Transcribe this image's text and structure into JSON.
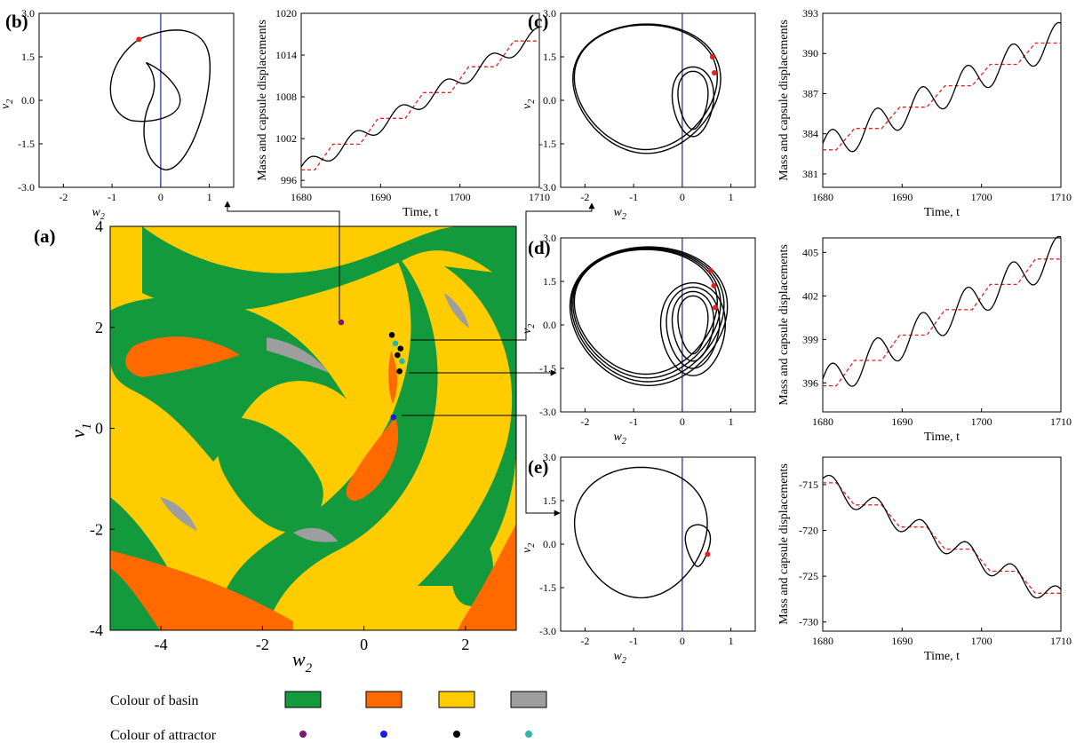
{
  "colors": {
    "green": "#129a3c",
    "orange": "#ff6a00",
    "yellow": "#ffcc00",
    "gray": "#9e9e9e",
    "purple": "#7a1a6e",
    "blue": "#1a1ae6",
    "black": "#000000",
    "teal": "#2cb7a8",
    "red": "#e61e1e",
    "vline": "#2222bb"
  },
  "legend": {
    "basin_label": "Colour of basin",
    "attractor_label": "Colour of attractor",
    "basin_colors": [
      "green",
      "orange",
      "yellow",
      "gray"
    ],
    "attractor_colors": [
      "purple",
      "blue",
      "black",
      "teal"
    ]
  },
  "chart_data": [
    {
      "id": "a",
      "letter": "(a)",
      "type": "heatmap",
      "xlabel": "w",
      "xlabel_sub": "2",
      "ylabel": "v",
      "ylabel_sub": "1",
      "xlim": [
        -5,
        3
      ],
      "ylim": [
        -4,
        4
      ],
      "xticks": [
        -4,
        -2,
        0,
        2
      ],
      "yticks": [
        -4,
        -2,
        0,
        2,
        4
      ],
      "attractor_points": [
        {
          "x": -0.45,
          "y": 2.1,
          "color": "purple"
        },
        {
          "x": 0.55,
          "y": 1.85,
          "color": "black"
        },
        {
          "x": 0.62,
          "y": 1.68,
          "color": "teal"
        },
        {
          "x": 0.72,
          "y": 1.58,
          "color": "black"
        },
        {
          "x": 0.66,
          "y": 1.45,
          "color": "black"
        },
        {
          "x": 0.75,
          "y": 1.33,
          "color": "teal"
        },
        {
          "x": 0.7,
          "y": 1.13,
          "color": "black"
        },
        {
          "x": 0.58,
          "y": 0.22,
          "color": "blue"
        }
      ]
    },
    {
      "id": "b_phase",
      "letter": "(b)",
      "type": "line",
      "xlabel": "w",
      "xlabel_sub": "2",
      "ylabel": "v",
      "ylabel_sub": "2",
      "xlim": [
        -2.5,
        1.5
      ],
      "ylim": [
        -3.0,
        3.0
      ],
      "xticks": [
        "-2",
        "-1",
        "0",
        "1"
      ],
      "yticks": [
        "-3.0",
        "-1.5",
        "0.0",
        "1.5",
        "3.0"
      ],
      "loops": 1,
      "markers": [
        {
          "x": -0.45,
          "y": 2.1
        }
      ]
    },
    {
      "id": "b_time",
      "type": "line",
      "xlabel": "Time, t",
      "ylabel": "Mass and capsule displacements",
      "xlim": [
        1680,
        1710
      ],
      "ylim": [
        995,
        1020
      ],
      "xticks": [
        "1680",
        "1690",
        "1700",
        "1710"
      ],
      "yticks": [
        "996",
        "1002",
        "1008",
        "1014",
        "1020"
      ],
      "trend_start": 997.5,
      "trend_end": 1017,
      "period": 5.7,
      "amp": 1.1
    },
    {
      "id": "c_phase",
      "letter": "(c)",
      "type": "line",
      "xlabel": "w",
      "xlabel_sub": "2",
      "ylabel": "v",
      "ylabel_sub": "2",
      "xlim": [
        -2.5,
        1.5
      ],
      "ylim": [
        -3.0,
        3.0
      ],
      "xticks": [
        "-2",
        "-1",
        "0",
        "1"
      ],
      "yticks": [
        "-3.0",
        "-1.5",
        "0.0",
        "1.5",
        "3.0"
      ],
      "loops": 2,
      "markers": [
        {
          "x": 0.62,
          "y": 1.5
        },
        {
          "x": 0.66,
          "y": 0.95
        }
      ]
    },
    {
      "id": "c_time",
      "type": "line",
      "xlabel": "Time, t",
      "ylabel": "Mass and capsule displacements",
      "xlim": [
        1680,
        1710
      ],
      "ylim": [
        380,
        393
      ],
      "xticks": [
        "1680",
        "1690",
        "1700",
        "1710"
      ],
      "yticks": [
        "381",
        "384",
        "387",
        "390",
        "393"
      ],
      "trend_start": 382.8,
      "trend_end": 391.2,
      "period": 5.7,
      "amp": 1.2
    },
    {
      "id": "d_phase",
      "letter": "(d)",
      "type": "line",
      "xlabel": "w",
      "xlabel_sub": "2",
      "ylabel": "v",
      "ylabel_sub": "2",
      "xlim": [
        -2.5,
        1.5
      ],
      "ylim": [
        -3.0,
        3.0
      ],
      "xticks": [
        "-2",
        "-1",
        "0",
        "1"
      ],
      "yticks": [
        "-3.0",
        "-1.5",
        "0.0",
        "1.5",
        "3.0"
      ],
      "loops": 4,
      "markers": [
        {
          "x": 0.58,
          "y": 1.88
        },
        {
          "x": 0.65,
          "y": 1.35
        },
        {
          "x": 0.68,
          "y": 0.6
        }
      ]
    },
    {
      "id": "d_time",
      "type": "line",
      "xlabel": "Time, t",
      "ylabel": "Mass and capsule displacements",
      "xlim": [
        1680,
        1710
      ],
      "ylim": [
        394,
        406
      ],
      "xticks": [
        "1680",
        "1690",
        "1700",
        "1710"
      ],
      "yticks": [
        "396",
        "399",
        "402",
        "405"
      ],
      "trend_start": 395.8,
      "trend_end": 405,
      "period": 5.7,
      "amp": 1.2
    },
    {
      "id": "e_phase",
      "letter": "(e)",
      "type": "line",
      "xlabel": "w",
      "xlabel_sub": "2",
      "ylabel": "v",
      "ylabel_sub": "2",
      "xlim": [
        -2.5,
        1.5
      ],
      "ylim": [
        -3.0,
        3.0
      ],
      "xticks": [
        "-2",
        "-1",
        "0",
        "1"
      ],
      "yticks": [
        "-3.0",
        "-1.5",
        "0.0",
        "1.5",
        "3.0"
      ],
      "loops": 1,
      "markers": [
        {
          "x": 0.52,
          "y": -0.35
        }
      ]
    },
    {
      "id": "e_time",
      "type": "line",
      "xlabel": "Time, t",
      "ylabel": "Mass and capsule displacements",
      "xlim": [
        1680,
        1710
      ],
      "ylim": [
        -731,
        -712
      ],
      "xticks": [
        "1680",
        "1690",
        "1700",
        "1710"
      ],
      "yticks": [
        "-715",
        "-720",
        "-725",
        "-730"
      ],
      "trend_start": -714.8,
      "trend_end": -727.5,
      "period": 5.7,
      "amp": 1.2
    }
  ]
}
